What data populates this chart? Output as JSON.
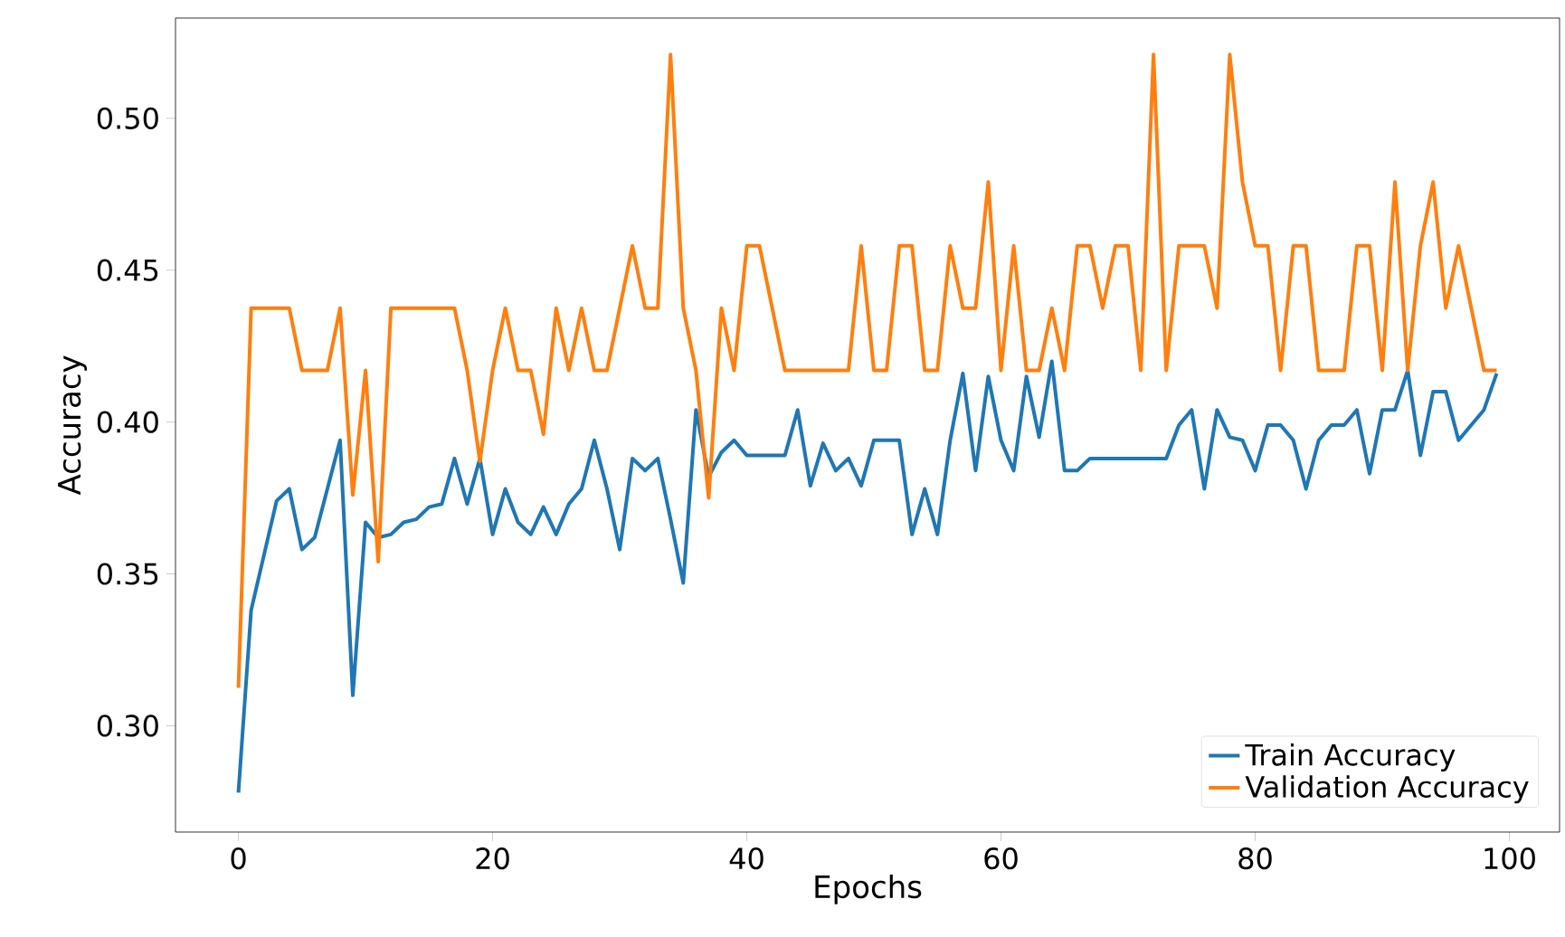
{
  "chart_data": {
    "type": "line",
    "xlabel": "Epochs",
    "ylabel": "Accuracy",
    "x": [
      0,
      1,
      2,
      3,
      4,
      5,
      6,
      7,
      8,
      9,
      10,
      11,
      12,
      13,
      14,
      15,
      16,
      17,
      18,
      19,
      20,
      21,
      22,
      23,
      24,
      25,
      26,
      27,
      28,
      29,
      30,
      31,
      32,
      33,
      34,
      35,
      36,
      37,
      38,
      39,
      40,
      41,
      42,
      43,
      44,
      45,
      46,
      47,
      48,
      49,
      50,
      51,
      52,
      53,
      54,
      55,
      56,
      57,
      58,
      59,
      60,
      61,
      62,
      63,
      64,
      65,
      66,
      67,
      68,
      69,
      70,
      71,
      72,
      73,
      74,
      75,
      76,
      77,
      78,
      79,
      80,
      81,
      82,
      83,
      84,
      85,
      86,
      87,
      88,
      89,
      90,
      91,
      92,
      93,
      94,
      95,
      96,
      97,
      98,
      99
    ],
    "series": [
      {
        "name": "Train Accuracy",
        "color": "#1f77b4",
        "values": [
          0.278,
          0.338,
          0.356,
          0.374,
          0.378,
          0.358,
          0.362,
          0.378,
          0.394,
          0.31,
          0.367,
          0.362,
          0.363,
          0.367,
          0.368,
          0.372,
          0.373,
          0.388,
          0.373,
          0.388,
          0.363,
          0.378,
          0.367,
          0.363,
          0.372,
          0.363,
          0.373,
          0.378,
          0.394,
          0.378,
          0.358,
          0.388,
          0.384,
          0.388,
          0.368,
          0.347,
          0.404,
          0.382,
          0.39,
          0.394,
          0.389,
          0.389,
          0.389,
          0.389,
          0.404,
          0.379,
          0.393,
          0.384,
          0.388,
          0.379,
          0.394,
          0.394,
          0.394,
          0.363,
          0.378,
          0.363,
          0.394,
          0.416,
          0.384,
          0.415,
          0.394,
          0.384,
          0.415,
          0.395,
          0.42,
          0.384,
          0.384,
          0.388,
          0.388,
          0.388,
          0.388,
          0.388,
          0.388,
          0.388,
          0.399,
          0.404,
          0.378,
          0.404,
          0.395,
          0.394,
          0.384,
          0.399,
          0.399,
          0.394,
          0.378,
          0.394,
          0.399,
          0.399,
          0.404,
          0.383,
          0.404,
          0.404,
          0.417,
          0.389,
          0.41,
          0.41,
          0.394,
          0.399,
          0.404,
          0.416
        ]
      },
      {
        "name": "Validation Accuracy",
        "color": "#ff7f0e",
        "values": [
          0.3125,
          0.4375,
          0.4375,
          0.4375,
          0.4375,
          0.417,
          0.417,
          0.417,
          0.4375,
          0.376,
          0.417,
          0.354,
          0.4375,
          0.4375,
          0.4375,
          0.4375,
          0.4375,
          0.4375,
          0.417,
          0.387,
          0.417,
          0.4375,
          0.417,
          0.417,
          0.396,
          0.4375,
          0.417,
          0.4375,
          0.417,
          0.417,
          0.4375,
          0.458,
          0.4375,
          0.4375,
          0.521,
          0.4375,
          0.417,
          0.375,
          0.4375,
          0.417,
          0.458,
          0.458,
          0.4375,
          0.417,
          0.417,
          0.417,
          0.417,
          0.417,
          0.417,
          0.458,
          0.417,
          0.417,
          0.458,
          0.458,
          0.417,
          0.417,
          0.458,
          0.4375,
          0.4375,
          0.479,
          0.417,
          0.458,
          0.417,
          0.417,
          0.4375,
          0.417,
          0.458,
          0.458,
          0.4375,
          0.458,
          0.458,
          0.417,
          0.521,
          0.417,
          0.458,
          0.458,
          0.458,
          0.4375,
          0.521,
          0.479,
          0.458,
          0.458,
          0.417,
          0.458,
          0.458,
          0.417,
          0.417,
          0.417,
          0.458,
          0.458,
          0.417,
          0.479,
          0.417,
          0.458,
          0.479,
          0.4375,
          0.458,
          0.4375,
          0.417,
          0.417
        ]
      }
    ],
    "xlim": [
      -4.95,
      103.95
    ],
    "ylim": [
      0.265,
      0.533
    ],
    "xticks": [
      0,
      20,
      40,
      60,
      80,
      100
    ],
    "yticks": [
      {
        "value": 0.3,
        "label": "0.30"
      },
      {
        "value": 0.35,
        "label": "0.35"
      },
      {
        "value": 0.4,
        "label": "0.40"
      },
      {
        "value": 0.45,
        "label": "0.45"
      },
      {
        "value": 0.5,
        "label": "0.50"
      }
    ],
    "legend": "bottom right",
    "grid": false,
    "marker": "none",
    "line_style": "solid"
  }
}
